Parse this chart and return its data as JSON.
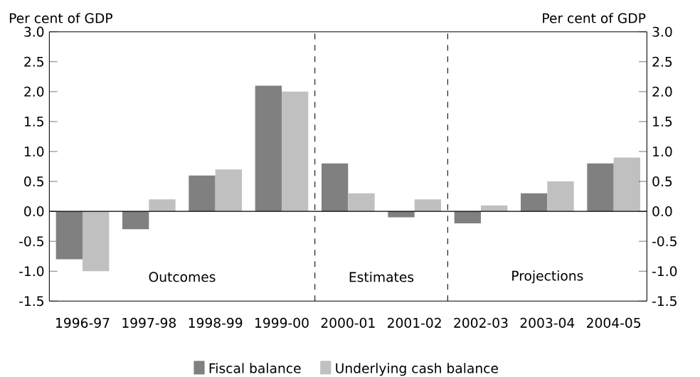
{
  "chart_data": {
    "type": "bar",
    "ylabel": "Per cent of GDP",
    "y2label": "Per cent of GDP",
    "categories": [
      "1996-97",
      "1997-98",
      "1998-99",
      "1999-00",
      "2000-01",
      "2001-02",
      "2002-03",
      "2003-04",
      "2004-05"
    ],
    "series": [
      {
        "name": "Fiscal balance",
        "color": "#808080",
        "values": [
          -0.8,
          -0.3,
          0.6,
          2.1,
          0.8,
          -0.1,
          -0.2,
          0.3,
          0.8
        ]
      },
      {
        "name": "Underlying cash balance",
        "color": "#c0c0c0",
        "values": [
          -1.0,
          0.2,
          0.7,
          2.0,
          0.3,
          0.2,
          0.1,
          0.5,
          0.9
        ]
      }
    ],
    "ylim": [
      -1.5,
      3.0
    ],
    "yticks": [
      {
        "value": -1.5,
        "label": "-1.5"
      },
      {
        "value": -1.0,
        "label": "-1.0"
      },
      {
        "value": -0.5,
        "label": "-0.5"
      },
      {
        "value": 0,
        "label": "0.0"
      },
      {
        "value": 0.5,
        "label": "0.5"
      },
      {
        "value": 1.0,
        "label": "1.0"
      },
      {
        "value": 1.5,
        "label": "1.5"
      },
      {
        "value": 2.0,
        "label": "2.0"
      },
      {
        "value": 2.5,
        "label": "2.5"
      },
      {
        "value": 3.0,
        "label": "3.0"
      }
    ],
    "y2lim": [
      -1.5,
      3.0
    ],
    "y2ticks": [
      {
        "value": -1.5,
        "label": "-1.5"
      },
      {
        "value": -1.0,
        "label": "-1.0"
      },
      {
        "value": -0.5,
        "label": "-0.5"
      },
      {
        "value": 0,
        "label": "0.0"
      },
      {
        "value": 0.5,
        "label": "0.5"
      },
      {
        "value": 1.0,
        "label": "1.0"
      },
      {
        "value": 1.5,
        "label": "1.5"
      },
      {
        "value": 2.0,
        "label": "2.0"
      },
      {
        "value": 2.5,
        "label": "2.5"
      },
      {
        "value": 3.0,
        "label": "3.0"
      }
    ],
    "ref_lines": [
      {
        "axis": "y",
        "value": 0,
        "line_style": "solid",
        "color": "#000000"
      }
    ],
    "annotations": [
      "Outcomes",
      "Estimates",
      "Projections"
    ],
    "legend": "bottom",
    "grid": false
  }
}
